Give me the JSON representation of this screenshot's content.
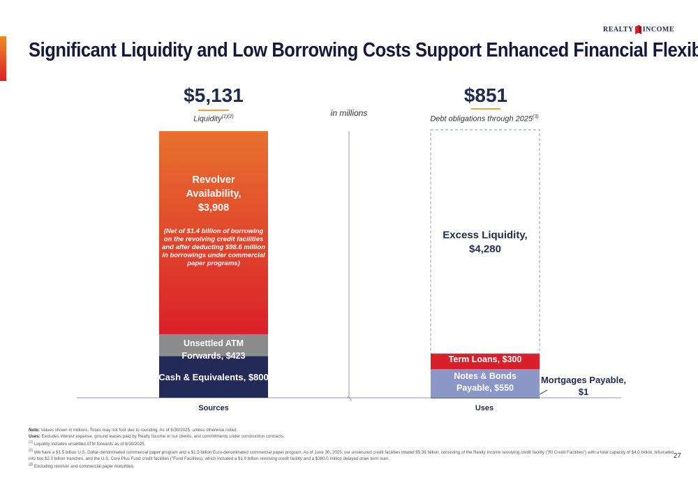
{
  "header": {
    "title": "Significant Liquidity and Low Borrowing Costs Support Enhanced Financial Flexibility",
    "logo_left": "REALTY",
    "logo_right": "INCOME",
    "brand_color": "#d9202a"
  },
  "summary": {
    "liquidity_value": "$5,131",
    "liquidity_label": "Liquidity",
    "liquidity_sup": "(1)(2)",
    "units": "in millions",
    "debt_value": "$851",
    "debt_label": "Debt obligations through 2025",
    "debt_sup": "(3)"
  },
  "chart_data": {
    "type": "bar",
    "stacked": true,
    "categories": [
      "Sources",
      "Uses"
    ],
    "series": [
      {
        "category": "Sources",
        "segments": [
          {
            "label_lines": [
              "Cash & Equivalents, $800"
            ],
            "value": 800,
            "color": "#232a57"
          },
          {
            "label_lines": [
              "Unsettled ATM",
              "Forwards, $423"
            ],
            "value": 423,
            "color": "#8c8c8c"
          },
          {
            "label_lines": [
              "Revolver",
              "Availability,",
              "$3,908"
            ],
            "value": 3908,
            "color": "#e45a2c",
            "note_lines": [
              "(Net of $1.4 billion of borrowing",
              "on the revolving credit facilities",
              "and after deducting $98.6 million",
              "in borrowings under commercial",
              "paper programs)"
            ]
          }
        ]
      },
      {
        "category": "Uses",
        "segments": [
          {
            "label_lines": [
              "Mortgages Payable,",
              "$1"
            ],
            "value": 1,
            "color": "#1f2a4d"
          },
          {
            "label_lines": [
              "Notes & Bonds",
              "Payable, $550"
            ],
            "value": 550,
            "color": "#8b97c6"
          },
          {
            "label_lines": [
              "Term Loans, $300"
            ],
            "value": 300,
            "color": "#d9202a"
          },
          {
            "label_lines": [
              "Excess Liquidity,",
              "$4,280"
            ],
            "value": 4280,
            "color": "none",
            "dashed": true
          }
        ]
      }
    ],
    "ylim": [
      0,
      5131
    ],
    "grid": false,
    "gradient_colors": [
      "#e8722f",
      "#d9202a"
    ]
  },
  "footnotes": {
    "note_label": "Note:",
    "note_text": " Values shown in millions. Totals may not foot due to rounding. As of 6/30/2025, unless otherwise noted.",
    "uses_label": "Uses:",
    "uses_text": " Excludes interest expense, ground leases paid by Realty Income or our clients, and commitments under construction contracts.",
    "fn1_sup": "(1)",
    "fn1": " Liquidity includes unsettled ATM forwards as of 6/30/2025.",
    "fn2_sup": "(2)",
    "fn2": " We have a $1.5 billion U.S. Dollar-denominated commercial paper program and a $1.5 billion Euro-denominated commercial paper program. As of June 30, 2025, our unsecured credit facilities totaled $5.38 billion, consisting of the Realty Income revolving credit facility (\"RI Credit Facilities\") with a total capacity of $4.0 billion, bifurcated into two $2.0 billion tranches, and the U.S. Core Plus Fund credit facilities (\"Fund Facilities), which included a $1.0 billion revolving credit facility and a $380.0 million delayed draw term loan.",
    "fn3_sup": "(3)",
    "fn3": " Excluding revolver and commercial paper maturities."
  },
  "page_number": "27"
}
